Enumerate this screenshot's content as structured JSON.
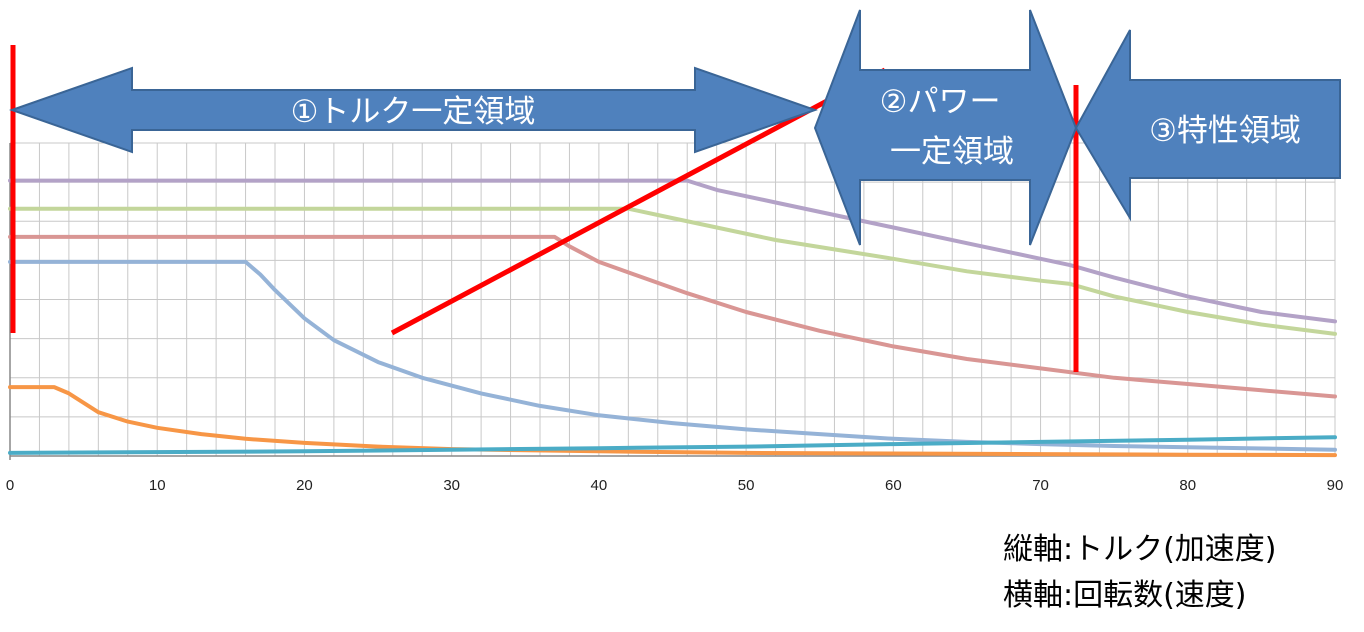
{
  "chart_data": {
    "type": "line",
    "x_ticks": [
      0,
      10,
      20,
      30,
      40,
      50,
      60,
      70,
      80,
      90
    ],
    "xlim": [
      0,
      90
    ],
    "ylim": [
      0,
      10
    ],
    "grid": true,
    "series": [
      {
        "color": "#b3a2c7",
        "points": [
          [
            0,
            8.8
          ],
          [
            46,
            8.8
          ],
          [
            48,
            8.5
          ],
          [
            52,
            8.1
          ],
          [
            56,
            7.7
          ],
          [
            60,
            7.3
          ],
          [
            65,
            6.8
          ],
          [
            70,
            6.3
          ],
          [
            72,
            6.1
          ],
          [
            75,
            5.7
          ],
          [
            80,
            5.1
          ],
          [
            85,
            4.6
          ],
          [
            90,
            4.3
          ]
        ]
      },
      {
        "color": "#c3d69b",
        "points": [
          [
            0,
            7.9
          ],
          [
            42,
            7.9
          ],
          [
            44,
            7.7
          ],
          [
            48,
            7.3
          ],
          [
            52,
            6.9
          ],
          [
            56,
            6.6
          ],
          [
            60,
            6.3
          ],
          [
            65,
            5.9
          ],
          [
            70,
            5.6
          ],
          [
            72,
            5.5
          ],
          [
            75,
            5.1
          ],
          [
            80,
            4.6
          ],
          [
            85,
            4.2
          ],
          [
            90,
            3.9
          ]
        ]
      },
      {
        "color": "#d99694",
        "points": [
          [
            0,
            7.0
          ],
          [
            37,
            7.0
          ],
          [
            38,
            6.7
          ],
          [
            40,
            6.2
          ],
          [
            43,
            5.7
          ],
          [
            46,
            5.2
          ],
          [
            50,
            4.6
          ],
          [
            55,
            4.0
          ],
          [
            60,
            3.5
          ],
          [
            65,
            3.1
          ],
          [
            70,
            2.8
          ],
          [
            75,
            2.5
          ],
          [
            80,
            2.3
          ],
          [
            85,
            2.1
          ],
          [
            90,
            1.9
          ]
        ]
      },
      {
        "color": "#95b3d7",
        "points": [
          [
            0,
            6.2
          ],
          [
            15.5,
            6.2
          ],
          [
            16,
            6.2
          ],
          [
            17,
            5.8
          ],
          [
            18,
            5.3
          ],
          [
            20,
            4.4
          ],
          [
            22,
            3.7
          ],
          [
            25,
            3.0
          ],
          [
            28,
            2.5
          ],
          [
            32,
            2.0
          ],
          [
            36,
            1.6
          ],
          [
            40,
            1.3
          ],
          [
            45,
            1.05
          ],
          [
            50,
            0.85
          ],
          [
            55,
            0.7
          ],
          [
            60,
            0.55
          ],
          [
            65,
            0.45
          ],
          [
            70,
            0.38
          ],
          [
            75,
            0.32
          ],
          [
            80,
            0.28
          ],
          [
            90,
            0.2
          ]
        ]
      },
      {
        "color": "#f79646",
        "points": [
          [
            0,
            2.2
          ],
          [
            3,
            2.2
          ],
          [
            4,
            2.0
          ],
          [
            5,
            1.7
          ],
          [
            6,
            1.4
          ],
          [
            8,
            1.1
          ],
          [
            10,
            0.9
          ],
          [
            13,
            0.7
          ],
          [
            16,
            0.55
          ],
          [
            20,
            0.42
          ],
          [
            25,
            0.3
          ],
          [
            30,
            0.22
          ],
          [
            40,
            0.15
          ],
          [
            50,
            0.1
          ],
          [
            60,
            0.08
          ],
          [
            70,
            0.06
          ],
          [
            80,
            0.04
          ],
          [
            90,
            0.03
          ]
        ]
      },
      {
        "color": "#4bacc6",
        "points": [
          [
            0,
            0.1
          ],
          [
            20,
            0.15
          ],
          [
            40,
            0.25
          ],
          [
            50,
            0.3
          ],
          [
            60,
            0.38
          ],
          [
            70,
            0.45
          ],
          [
            80,
            0.52
          ],
          [
            90,
            0.6
          ]
        ]
      }
    ],
    "annotations": {
      "regions": [
        "①トルク一定領域",
        "②パワー\n一定領域",
        "③特性領域"
      ],
      "axis_notes": [
        "縦軸:トルク(加速度)",
        "横軸:回転数(速度)"
      ]
    }
  },
  "colors": {
    "arrow_fill": "#4f81bd",
    "arrow_stroke": "#3a6596",
    "red_line": "#ff0000",
    "grid": "#c8c8c8"
  }
}
